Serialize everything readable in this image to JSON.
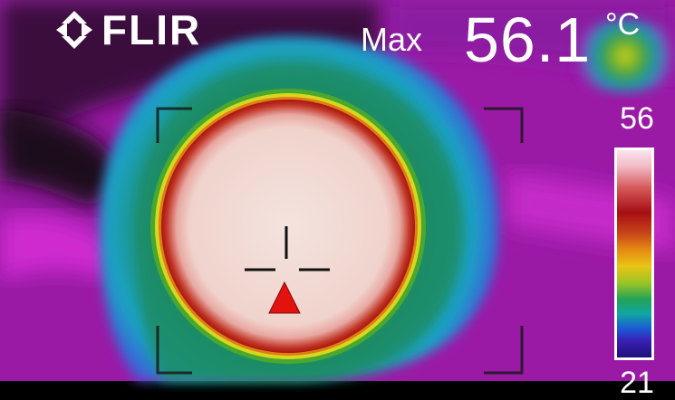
{
  "brand": {
    "name": "FLIR"
  },
  "measurement": {
    "label": "Max",
    "value": "56.1",
    "unit": "°C"
  },
  "scale": {
    "max": "56",
    "min": "21"
  },
  "icons": {
    "logo": "flir-diamond-icon",
    "crosshair": "crosshair-icon",
    "hotspot_marker": "red-triangle-icon",
    "frame": "measurement-area-corners"
  },
  "colors": {
    "hottest": "#f3dcd4",
    "hot_ring": "#b52017",
    "warm_ring": "#d9d51e",
    "mid_halo": "#1f8a6c",
    "cool_halo": "#1a9fc4",
    "background": "#9a1aa5",
    "marker": "#e4120f",
    "overlay_text": "#ffffff"
  }
}
